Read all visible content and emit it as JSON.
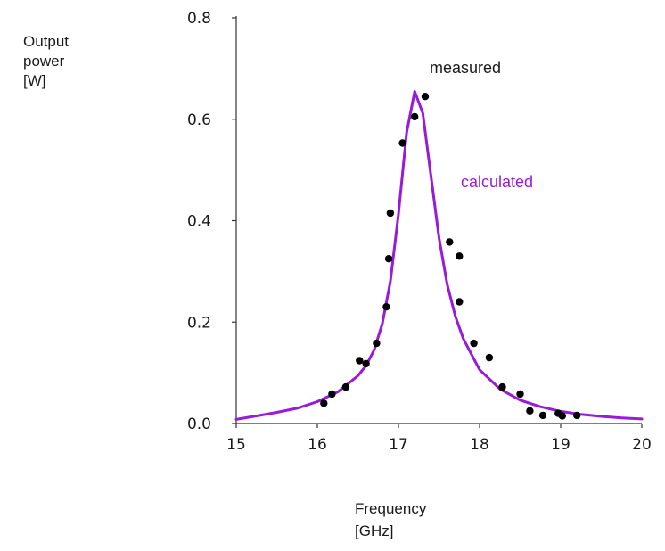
{
  "chart_data": {
    "type": "scatter",
    "xlabel": [
      "Frequency",
      "[GHz]"
    ],
    "ylabel": [
      "Output",
      "power",
      "[W]"
    ],
    "xlim": [
      15,
      20
    ],
    "ylim": [
      0,
      0.8
    ],
    "xticks": [
      "15",
      "16",
      "17",
      "18",
      "19",
      "20"
    ],
    "xtick_values": [
      15,
      16,
      17,
      18,
      19,
      20
    ],
    "yticks": [
      "0.0",
      "0.2",
      "0.4",
      "0.6",
      "0.8"
    ],
    "ytick_values": [
      0.0,
      0.2,
      0.4,
      0.6,
      0.8
    ],
    "grid": false,
    "series": [
      {
        "name": "measured",
        "kind": "scatter",
        "color": "#000000",
        "points": [
          [
            16.08,
            0.04
          ],
          [
            16.18,
            0.058
          ],
          [
            16.35,
            0.072
          ],
          [
            16.52,
            0.124
          ],
          [
            16.6,
            0.118
          ],
          [
            16.73,
            0.158
          ],
          [
            16.85,
            0.23
          ],
          [
            16.88,
            0.325
          ],
          [
            16.9,
            0.415
          ],
          [
            17.05,
            0.553
          ],
          [
            17.2,
            0.605
          ],
          [
            17.33,
            0.645
          ],
          [
            17.63,
            0.358
          ],
          [
            17.75,
            0.33
          ],
          [
            17.75,
            0.24
          ],
          [
            17.93,
            0.158
          ],
          [
            18.12,
            0.13
          ],
          [
            18.28,
            0.072
          ],
          [
            18.5,
            0.058
          ],
          [
            18.62,
            0.025
          ],
          [
            18.78,
            0.016
          ],
          [
            18.97,
            0.02
          ],
          [
            19.02,
            0.015
          ],
          [
            19.2,
            0.016
          ]
        ]
      },
      {
        "name": "calculated",
        "kind": "line",
        "color": "#9a1ad9",
        "points": [
          [
            15.0,
            0.008
          ],
          [
            15.25,
            0.015
          ],
          [
            15.5,
            0.022
          ],
          [
            15.75,
            0.03
          ],
          [
            16.0,
            0.043
          ],
          [
            16.25,
            0.062
          ],
          [
            16.5,
            0.094
          ],
          [
            16.6,
            0.114
          ],
          [
            16.7,
            0.145
          ],
          [
            16.8,
            0.196
          ],
          [
            16.9,
            0.28
          ],
          [
            17.0,
            0.413
          ],
          [
            17.1,
            0.573
          ],
          [
            17.2,
            0.655
          ],
          [
            17.3,
            0.612
          ],
          [
            17.4,
            0.489
          ],
          [
            17.5,
            0.366
          ],
          [
            17.6,
            0.275
          ],
          [
            17.7,
            0.212
          ],
          [
            17.8,
            0.167
          ],
          [
            18.0,
            0.106
          ],
          [
            18.25,
            0.068
          ],
          [
            18.5,
            0.046
          ],
          [
            18.75,
            0.033
          ],
          [
            19.0,
            0.024
          ],
          [
            19.25,
            0.018
          ],
          [
            19.5,
            0.014
          ],
          [
            19.75,
            0.011
          ],
          [
            20.0,
            0.009
          ]
        ]
      }
    ]
  }
}
